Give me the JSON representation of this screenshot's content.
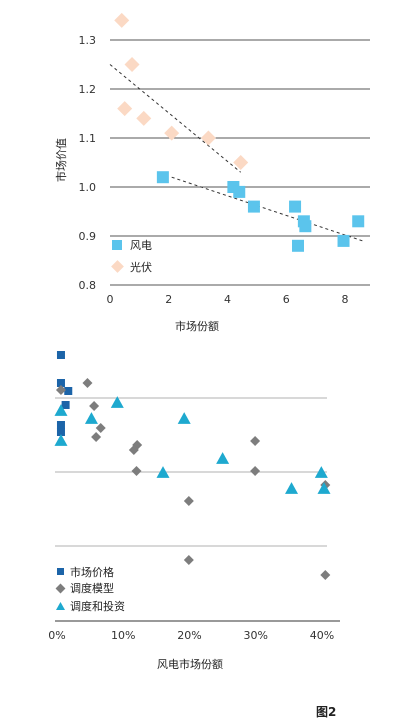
{
  "figure_label": "图2",
  "chart_data": [
    {
      "type": "scatter",
      "xlabel": "市场份额",
      "ylabel": "市场价值",
      "xlim": [
        0,
        9
      ],
      "ylim": [
        0.8,
        1.35
      ],
      "grid": "horizontal",
      "legend_placement": "bottom-left",
      "x_ticks": [
        "0",
        "2",
        "4",
        "6",
        "8"
      ],
      "y_ticks": [
        "0.8",
        "0.9",
        "1.0",
        "1.1",
        "1.2",
        "1.3"
      ],
      "series": [
        {
          "name": "风电",
          "marker": "square",
          "color": "#5bc4ec",
          "points": [
            [
              1.8,
              1.02
            ],
            [
              4.2,
              1.0
            ],
            [
              4.4,
              0.99
            ],
            [
              4.9,
              0.96
            ],
            [
              6.3,
              0.96
            ],
            [
              6.6,
              0.93
            ],
            [
              6.65,
              0.92
            ],
            [
              6.4,
              0.88
            ],
            [
              7.95,
              0.89
            ],
            [
              8.45,
              0.93
            ]
          ]
        },
        {
          "name": "光伏",
          "marker": "diamond",
          "color": "#fbd9c4",
          "points": [
            [
              0.4,
              1.34
            ],
            [
              0.75,
              1.25
            ],
            [
              0.5,
              1.16
            ],
            [
              1.15,
              1.14
            ],
            [
              2.1,
              1.11
            ],
            [
              3.35,
              1.1
            ],
            [
              4.45,
              1.05
            ]
          ]
        }
      ],
      "trendlines": [
        {
          "series": "光伏",
          "from": [
            0,
            1.25
          ],
          "to": [
            4.45,
            1.03
          ]
        },
        {
          "series": "风电",
          "from": [
            2.1,
            1.02
          ],
          "to": [
            8.6,
            0.89
          ]
        }
      ]
    },
    {
      "type": "scatter",
      "xlabel": "风电市场份额",
      "xlim": [
        0,
        42
      ],
      "x_ticks": [
        "0%",
        "10%",
        "20%",
        "30%",
        "40%"
      ],
      "x_tick_values": [
        0,
        10,
        20,
        30,
        40
      ],
      "y_axis_labels": "none",
      "grid": "horizontal",
      "legend_placement": "bottom-left",
      "series": [
        {
          "name": "市场价格",
          "marker": "square",
          "color": "#1c64a8",
          "points": [
            [
              0.6,
              355
            ],
            [
              0.6,
              383
            ],
            [
              1.7,
              391
            ],
            [
              1.3,
              405
            ],
            [
              0.6,
              425
            ],
            [
              0.6,
              432
            ]
          ]
        },
        {
          "name": "调度模型",
          "marker": "diamond",
          "color": "#7d7d7d",
          "points": [
            [
              0.6,
              390
            ],
            [
              4.6,
              383
            ],
            [
              5.6,
              406
            ],
            [
              6.6,
              428
            ],
            [
              5.9,
              437
            ],
            [
              12.1,
              445
            ],
            [
              11.6,
              450
            ],
            [
              12.0,
              471
            ],
            [
              19.9,
              501
            ],
            [
              19.9,
              560
            ],
            [
              29.9,
              441
            ],
            [
              29.9,
              471
            ],
            [
              40.5,
              485
            ],
            [
              40.5,
              575
            ]
          ]
        },
        {
          "name": "调度和投资",
          "marker": "triangle",
          "color": "#1ea9cf",
          "points": [
            [
              0.6,
              410
            ],
            [
              0.6,
              440
            ],
            [
              5.2,
              418
            ],
            [
              9.1,
              402
            ],
            [
              19.2,
              418
            ],
            [
              25.0,
              458
            ],
            [
              16.0,
              472
            ],
            [
              35.4,
              488
            ],
            [
              39.9,
              472
            ],
            [
              40.3,
              488
            ]
          ]
        }
      ]
    }
  ]
}
